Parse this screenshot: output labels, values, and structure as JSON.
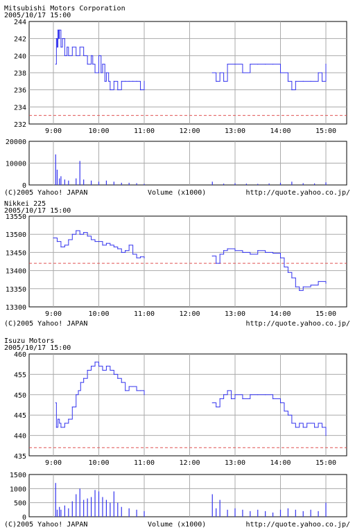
{
  "colors": {
    "series": "#3333ee",
    "volume": "#3333ee",
    "reference_line": "#e05050",
    "grid": "#aaaaaa",
    "frame": "#000000"
  },
  "footer": {
    "copyright": "(C)2005 Yahoo! JAPAN",
    "url": "http://quote.yahoo.co.jp/",
    "volume_label": "Volume (x1000)"
  },
  "chart_data": [
    {
      "type": "line",
      "title": "Mitsubishi Motors Corporation",
      "subtitle": "2005/10/17 15:00",
      "x_ticks": [
        "9:00",
        "10:00",
        "11:00",
        "12:00",
        "13:00",
        "14:00",
        "15:00"
      ],
      "y_ticks": [
        "244",
        "242",
        "240",
        "238",
        "236",
        "234",
        "232"
      ],
      "ylim": [
        232,
        244
      ],
      "reference_value": 233,
      "grid": true,
      "series": [
        {
          "x": [
            "9:03",
            "9:04",
            "9:05",
            "9:06",
            "9:07",
            "9:08",
            "9:10",
            "9:12",
            "9:15",
            "9:18",
            "9:20",
            "9:25",
            "9:30",
            "9:35",
            "9:40",
            "9:45",
            "9:50",
            "9:52",
            "9:55",
            "10:00",
            "10:03",
            "10:05",
            "10:08",
            "10:10",
            "10:13",
            "10:15",
            "10:20",
            "10:25",
            "10:30",
            "10:35",
            "10:40",
            "10:45",
            "10:50",
            "10:55",
            "11:00",
            "12:30",
            "12:35",
            "12:40",
            "12:45",
            "12:50",
            "13:00",
            "13:10",
            "13:20",
            "13:30",
            "13:40",
            "13:50",
            "14:00",
            "14:10",
            "14:15",
            "14:20",
            "14:30",
            "14:40",
            "14:50",
            "14:55",
            "15:00"
          ],
          "values": [
            239,
            242,
            241,
            243,
            242,
            243,
            241,
            242,
            240,
            241,
            240,
            241,
            240,
            241,
            240,
            239,
            240,
            239,
            238,
            240,
            238,
            239,
            237,
            238,
            237,
            236,
            237,
            236,
            237,
            237,
            237,
            237,
            237,
            236,
            237,
            238,
            237,
            238,
            237,
            239,
            239,
            238,
            239,
            239,
            239,
            239,
            238,
            237,
            236,
            237,
            237,
            237,
            238,
            237,
            239
          ]
        }
      ]
    },
    {
      "type": "bar",
      "title": "",
      "y_ticks": [
        "20000",
        "10000",
        "0"
      ],
      "ylim": [
        0,
        20000
      ],
      "xlabel": "Volume (x1000)",
      "grid": true,
      "series": [
        {
          "x": [
            "9:03",
            "9:05",
            "9:08",
            "9:10",
            "9:15",
            "9:20",
            "9:30",
            "9:35",
            "9:40",
            "9:50",
            "10:00",
            "10:10",
            "10:20",
            "10:30",
            "10:40",
            "10:50",
            "11:00",
            "12:30",
            "12:45",
            "13:00",
            "13:15",
            "13:30",
            "13:45",
            "14:00",
            "14:15",
            "14:30",
            "14:45",
            "15:00"
          ],
          "values": [
            14000,
            7000,
            3000,
            4000,
            2500,
            2000,
            3000,
            11000,
            2500,
            2000,
            1500,
            2000,
            1500,
            1000,
            1000,
            800,
            500,
            1500,
            600,
            800,
            600,
            500,
            700,
            1000,
            1500,
            800,
            700,
            1200
          ]
        }
      ]
    },
    {
      "type": "line",
      "title": "Nikkei 225",
      "subtitle": "2005/10/17 15:00",
      "x_ticks": [
        "9:00",
        "10:00",
        "11:00",
        "12:00",
        "13:00",
        "14:00",
        "15:00"
      ],
      "y_ticks": [
        "13550",
        "13500",
        "13450",
        "13400",
        "13350",
        "13300"
      ],
      "ylim": [
        13300,
        13550
      ],
      "reference_value": 13420,
      "grid": true,
      "series": [
        {
          "x": [
            "9:00",
            "9:05",
            "9:10",
            "9:15",
            "9:20",
            "9:25",
            "9:30",
            "9:35",
            "9:40",
            "9:45",
            "9:50",
            "9:55",
            "10:00",
            "10:05",
            "10:10",
            "10:15",
            "10:20",
            "10:25",
            "10:30",
            "10:35",
            "10:40",
            "10:45",
            "10:50",
            "10:55",
            "11:00",
            "12:30",
            "12:35",
            "12:40",
            "12:45",
            "12:50",
            "13:00",
            "13:10",
            "13:20",
            "13:30",
            "13:40",
            "13:50",
            "14:00",
            "14:05",
            "14:10",
            "14:15",
            "14:20",
            "14:25",
            "14:30",
            "14:40",
            "14:50",
            "15:00"
          ],
          "values": [
            13490,
            13480,
            13465,
            13470,
            13485,
            13500,
            13510,
            13500,
            13505,
            13495,
            13485,
            13480,
            13480,
            13470,
            13475,
            13470,
            13465,
            13460,
            13450,
            13455,
            13470,
            13445,
            13435,
            13438,
            13435,
            13440,
            13420,
            13445,
            13455,
            13460,
            13455,
            13450,
            13445,
            13455,
            13450,
            13448,
            13435,
            13410,
            13395,
            13380,
            13355,
            13345,
            13355,
            13360,
            13370,
            13365
          ]
        }
      ]
    },
    {
      "type": "line",
      "title": "Isuzu Motors",
      "subtitle": "2005/10/17 15:00",
      "x_ticks": [
        "9:00",
        "10:00",
        "11:00",
        "12:00",
        "13:00",
        "14:00",
        "15:00"
      ],
      "y_ticks": [
        "460",
        "455",
        "450",
        "445",
        "440",
        "435"
      ],
      "ylim": [
        435,
        460
      ],
      "reference_value": 437,
      "grid": true,
      "series": [
        {
          "x": [
            "9:03",
            "9:04",
            "9:06",
            "9:08",
            "9:10",
            "9:15",
            "9:20",
            "9:25",
            "9:30",
            "9:33",
            "9:36",
            "9:40",
            "9:45",
            "9:50",
            "9:55",
            "10:00",
            "10:05",
            "10:10",
            "10:15",
            "10:20",
            "10:25",
            "10:30",
            "10:35",
            "10:40",
            "10:45",
            "10:50",
            "10:55",
            "11:00",
            "12:30",
            "12:35",
            "12:40",
            "12:45",
            "12:50",
            "12:55",
            "13:00",
            "13:10",
            "13:20",
            "13:30",
            "13:40",
            "13:50",
            "14:00",
            "14:05",
            "14:10",
            "14:15",
            "14:20",
            "14:25",
            "14:30",
            "14:35",
            "14:40",
            "14:45",
            "14:50",
            "14:55",
            "15:00"
          ],
          "values": [
            448,
            442,
            444,
            443,
            442,
            443,
            444,
            447,
            450,
            451,
            453,
            454,
            456,
            457,
            458,
            457,
            456,
            457,
            456,
            455,
            454,
            453,
            451,
            452,
            452,
            451,
            451,
            450,
            448,
            447,
            449,
            450,
            451,
            449,
            450,
            449,
            450,
            450,
            450,
            449,
            448,
            446,
            445,
            443,
            442,
            443,
            442,
            443,
            443,
            442,
            443,
            442,
            440
          ]
        }
      ]
    },
    {
      "type": "bar",
      "title": "",
      "y_ticks": [
        "1500",
        "1000",
        "500",
        "0"
      ],
      "ylim": [
        0,
        1500
      ],
      "xlabel": "Volume (x1000)",
      "grid": true,
      "series": [
        {
          "x": [
            "9:03",
            "9:05",
            "9:08",
            "9:10",
            "9:15",
            "9:20",
            "9:25",
            "9:30",
            "9:35",
            "9:40",
            "9:45",
            "9:50",
            "9:55",
            "10:00",
            "10:05",
            "10:10",
            "10:15",
            "10:20",
            "10:25",
            "10:30",
            "10:40",
            "10:50",
            "11:00",
            "12:30",
            "12:35",
            "12:40",
            "12:50",
            "13:00",
            "13:10",
            "13:20",
            "13:30",
            "13:40",
            "13:50",
            "14:00",
            "14:10",
            "14:20",
            "14:30",
            "14:40",
            "14:50",
            "15:00"
          ],
          "values": [
            1200,
            250,
            350,
            250,
            400,
            300,
            550,
            800,
            1000,
            600,
            650,
            700,
            950,
            900,
            700,
            600,
            500,
            900,
            500,
            350,
            300,
            250,
            200,
            800,
            300,
            600,
            250,
            300,
            250,
            200,
            250,
            200,
            150,
            250,
            300,
            250,
            200,
            250,
            200,
            500
          ]
        }
      ]
    }
  ]
}
